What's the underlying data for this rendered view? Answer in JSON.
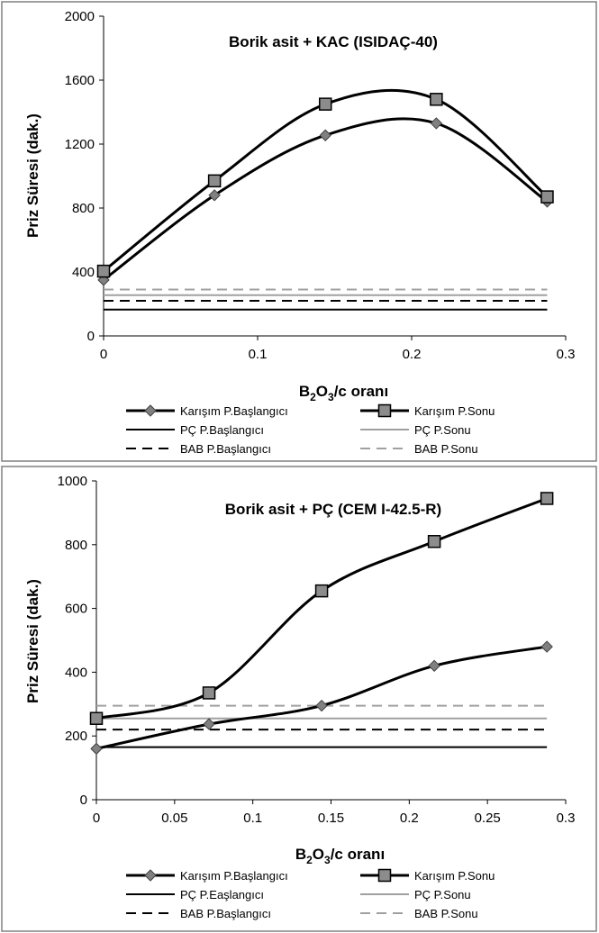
{
  "chart_data": [
    {
      "type": "line",
      "title": "Borik asit + KAC (ISIDAÇ-40)",
      "ylabel": "Priz Süresi (dak.)",
      "xlabel": {
        "main": "B",
        "sub1": "2",
        "mid": "O",
        "sub2": "3",
        "tail": "/c  oranı"
      },
      "xlim": [
        0,
        0.3
      ],
      "ylim": [
        0,
        2000
      ],
      "xticks": [
        0,
        0.1,
        0.2,
        0.3
      ],
      "xtick_labels": [
        "0",
        "0.1",
        "0.2",
        "0.3"
      ],
      "yticks": [
        0,
        400,
        800,
        1200,
        1600,
        2000
      ],
      "ytick_labels": [
        "0",
        "400",
        "800",
        "1200",
        "1600",
        "2000"
      ],
      "series": [
        {
          "name": "Karışım P.Başlangıcı",
          "x": [
            0,
            0.072,
            0.144,
            0.216,
            0.288
          ],
          "y": [
            350,
            880,
            1255,
            1330,
            840
          ],
          "color": "#000000",
          "marker": "diamond",
          "dash": "solid",
          "smooth": true
        },
        {
          "name": "Karışım P.Sonu",
          "x": [
            0,
            0.072,
            0.144,
            0.216,
            0.288
          ],
          "y": [
            405,
            970,
            1450,
            1480,
            870
          ],
          "color": "#000000",
          "marker": "square",
          "dash": "solid",
          "smooth": true
        },
        {
          "name": "PÇ P.Başlangıcı",
          "x": [
            0,
            0.288
          ],
          "y": [
            165,
            165
          ],
          "color": "#000000",
          "marker": "none",
          "dash": "solid"
        },
        {
          "name": "PÇ P.Sonu",
          "x": [
            0,
            0.288
          ],
          "y": [
            255,
            255
          ],
          "color": "#a0a0a0",
          "marker": "none",
          "dash": "solid"
        },
        {
          "name": "BAB P.Başlangıcı",
          "x": [
            0,
            0.288
          ],
          "y": [
            220,
            220
          ],
          "color": "#000000",
          "marker": "none",
          "dash": "dashed"
        },
        {
          "name": "BAB P.Sonu",
          "x": [
            0,
            0.288
          ],
          "y": [
            290,
            290
          ],
          "color": "#a0a0a0",
          "marker": "none",
          "dash": "dashed"
        }
      ],
      "legend": {
        "placement": "bottom",
        "columns": 2
      }
    },
    {
      "type": "line",
      "title": "Borik asit + PÇ (CEM I-42.5-R)",
      "ylabel": "Priz Süresi (dak.)",
      "xlabel": {
        "main": "B",
        "sub1": "2",
        "mid": "O",
        "sub2": "3",
        "tail": "/c  oranı"
      },
      "xlim": [
        0,
        0.3
      ],
      "ylim": [
        0,
        1000
      ],
      "xticks": [
        0,
        0.05,
        0.1,
        0.15,
        0.2,
        0.25,
        0.3
      ],
      "xtick_labels": [
        "0",
        "0.05",
        "0.1",
        "0.15",
        "0.2",
        "0.25",
        "0.3"
      ],
      "yticks": [
        0,
        200,
        400,
        600,
        800,
        1000
      ],
      "ytick_labels": [
        "0",
        "200",
        "400",
        "600",
        "800",
        "1000"
      ],
      "series": [
        {
          "name": "Karışım P.Başlangıcı",
          "x": [
            0,
            0.072,
            0.144,
            0.216,
            0.288
          ],
          "y": [
            160,
            237,
            295,
            420,
            480
          ],
          "color": "#000000",
          "marker": "diamond",
          "dash": "solid",
          "smooth": true
        },
        {
          "name": "Karışım P.Sonu",
          "x": [
            0,
            0.072,
            0.144,
            0.216,
            0.288
          ],
          "y": [
            255,
            335,
            655,
            810,
            945
          ],
          "color": "#000000",
          "marker": "square",
          "dash": "solid",
          "smooth": true
        },
        {
          "name": "PÇ P.Eaşlangıcı",
          "x": [
            0,
            0.288
          ],
          "y": [
            165,
            165
          ],
          "color": "#000000",
          "marker": "none",
          "dash": "solid"
        },
        {
          "name": "PÇ P.Sonu",
          "x": [
            0,
            0.288
          ],
          "y": [
            255,
            255
          ],
          "color": "#a0a0a0",
          "marker": "none",
          "dash": "solid"
        },
        {
          "name": "BAB P.Başlangıcı",
          "x": [
            0,
            0.288
          ],
          "y": [
            220,
            220
          ],
          "color": "#000000",
          "marker": "none",
          "dash": "dashed"
        },
        {
          "name": "BAB P.Sonu",
          "x": [
            0,
            0.288
          ],
          "y": [
            295,
            295
          ],
          "color": "#a0a0a0",
          "marker": "none",
          "dash": "dashed"
        }
      ],
      "legend": {
        "placement": "bottom",
        "columns": 2
      }
    }
  ]
}
